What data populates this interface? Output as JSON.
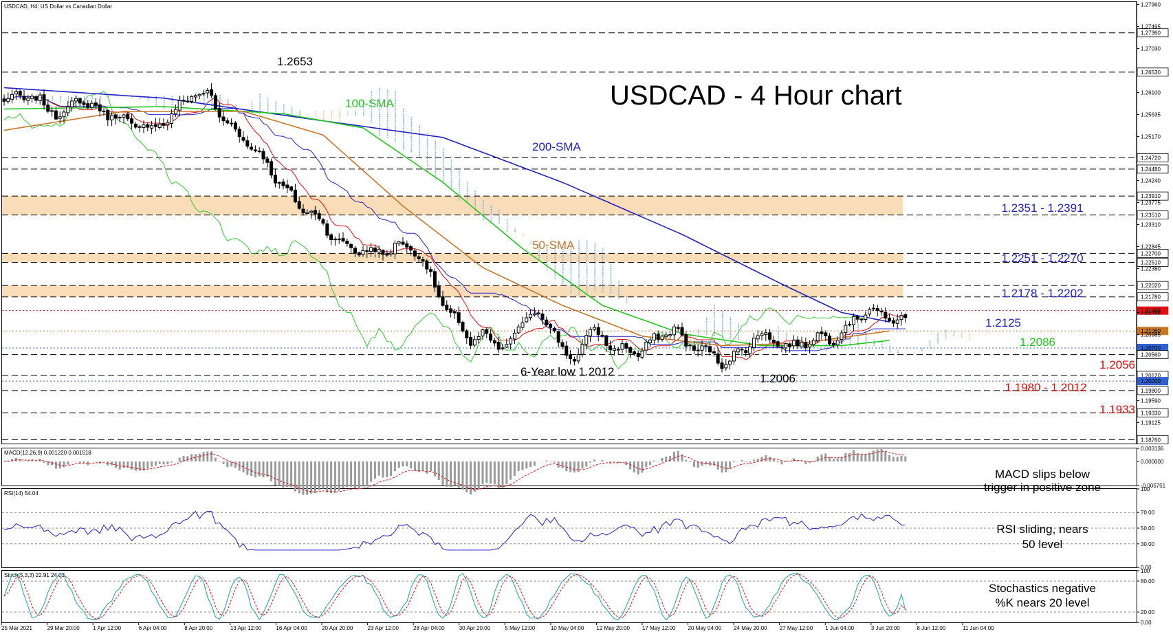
{
  "header": {
    "main": "USDCAD, H4:  US Dollar vs Canadian Dollar",
    "macd": "MACD(12,26,9) 0.001220 0.001518",
    "rsi": "RSI(14) 54.04",
    "stoch": "Stoch(5,3,3) 22.91 24.03"
  },
  "title": "USDCAD - 4 Hour chart",
  "colors": {
    "background": "#ffffff",
    "candle": "#000000",
    "sma200": "#1e22c8",
    "sma100": "#22c81e",
    "sma50": "#c87828",
    "tenkan": "#e01010",
    "kijun": "#2020d0",
    "chikou": "#33cc33",
    "cloud_bull": "#f4c08c",
    "cloud_bear": "#7aaee8",
    "zone_fill": "#f9ddb8",
    "blue_text": "#1e22c8",
    "red_text": "#e01010",
    "green_text": "#22c81e",
    "orange_text": "#c87828",
    "macd_hist": "#9a9a9a",
    "macd_signal": "#e01010",
    "rsi_line": "#2020c8",
    "stoch_main": "#1aa0b0",
    "stoch_signal": "#e01010"
  },
  "chart_data": [
    {
      "type": "candlestick",
      "instrument": "USDCAD",
      "timeframe": "H4",
      "x_labels": [
        "25 Mar 2021",
        "29 Mar 20:00",
        "1 Apr 12:00",
        "6 Apr 04:00",
        "8 Apr 20:00",
        "13 Apr 12:00",
        "16 Apr 04:00",
        "20 Apr 20:00",
        "23 Apr 12:00",
        "28 Apr 04:00",
        "30 Apr 20:00",
        "5 May 12:00",
        "10 May 04:00",
        "12 May 20:00",
        "17 May 12:00",
        "20 May 04:00",
        "24 May 20:00",
        "27 May 12:00",
        "1 Jun 04:00",
        "3 Jun 20:00",
        "8 Jun 12:00",
        "11 Jun 04:00"
      ],
      "y_ticks": [
        "1.27960",
        "1.27495",
        "1.27360",
        "1.27030",
        "1.26530",
        "1.26100",
        "1.25635",
        "1.25170",
        "1.24720",
        "1.24480",
        "1.24240",
        "1.23910",
        "1.23775",
        "1.23510",
        "1.23310",
        "1.22845",
        "1.22700",
        "1.22510",
        "1.22380",
        "1.22020",
        "1.21780",
        "1.21490",
        "1.21450",
        "1.21060",
        "1.20985",
        "1.20700",
        "1.20560",
        "1.20120",
        "1.20000",
        "1.19800",
        "1.19590",
        "1.19330",
        "1.19125",
        "1.18760"
      ],
      "ylim": [
        1.1868,
        1.2801
      ],
      "close_path": [
        [
          0,
          1.259
        ],
        [
          4,
          1.2605
        ],
        [
          9,
          1.259
        ],
        [
          14,
          1.256
        ],
        [
          18,
          1.2595
        ],
        [
          23,
          1.2575
        ],
        [
          28,
          1.256
        ],
        [
          33,
          1.254
        ],
        [
          37,
          1.2535
        ],
        [
          42,
          1.256
        ],
        [
          47,
          1.261
        ],
        [
          52,
          1.26
        ],
        [
          54,
          1.2563
        ],
        [
          59,
          1.252
        ],
        [
          64,
          1.248
        ],
        [
          69,
          1.242
        ],
        [
          74,
          1.237
        ],
        [
          78,
          1.235
        ],
        [
          83,
          1.23
        ],
        [
          87,
          1.228
        ],
        [
          91,
          1.2275
        ],
        [
          95,
          1.227
        ],
        [
          99,
          1.229
        ],
        [
          104,
          1.227
        ],
        [
          108,
          1.22
        ],
        [
          111,
          1.215
        ],
        [
          114,
          1.212
        ],
        [
          117,
          1.2085
        ],
        [
          120,
          1.2095
        ],
        [
          123,
          1.208
        ],
        [
          126,
          1.207
        ],
        [
          129,
          1.211
        ],
        [
          132,
          1.215
        ],
        [
          135,
          1.213
        ],
        [
          138,
          1.211
        ],
        [
          141,
          1.205
        ],
        [
          143,
          1.204
        ],
        [
          145,
          1.208
        ],
        [
          147,
          1.211
        ],
        [
          150,
          1.209
        ],
        [
          153,
          1.207
        ],
        [
          156,
          1.2065
        ],
        [
          159,
          1.206
        ],
        [
          162,
          1.208
        ],
        [
          165,
          1.21
        ],
        [
          168,
          1.211
        ],
        [
          171,
          1.208
        ],
        [
          174,
          1.207
        ],
        [
          177,
          1.206
        ],
        [
          180,
          1.204
        ],
        [
          182,
          1.2045
        ],
        [
          185,
          1.2065
        ],
        [
          188,
          1.209
        ],
        [
          191,
          1.21
        ],
        [
          194,
          1.208
        ],
        [
          197,
          1.207
        ],
        [
          199,
          1.208
        ],
        [
          202,
          1.2085
        ],
        [
          205,
          1.2095
        ],
        [
          208,
          1.209
        ],
        [
          211,
          1.211
        ],
        [
          214,
          1.214
        ],
        [
          217,
          1.215
        ],
        [
          220,
          1.214
        ],
        [
          223,
          1.213
        ],
        [
          226,
          1.2125
        ]
      ],
      "series": [
        {
          "name": "200-SMA",
          "values": [
            [
              0,
              1.262
            ],
            [
              40,
              1.2598
            ],
            [
              80,
              1.255
            ],
            [
              110,
              1.2515
            ],
            [
              140,
              1.242
            ],
            [
              170,
              1.231
            ],
            [
              195,
              1.2205
            ],
            [
              210,
              1.2145
            ],
            [
              222,
              1.2125
            ]
          ]
        },
        {
          "name": "100-SMA",
          "values": [
            [
              0,
              1.2575
            ],
            [
              40,
              1.258
            ],
            [
              70,
              1.2565
            ],
            [
              90,
              1.2535
            ],
            [
              110,
              1.242
            ],
            [
              130,
              1.228
            ],
            [
              150,
              1.216
            ],
            [
              170,
              1.21
            ],
            [
              190,
              1.2075
            ],
            [
              210,
              1.2075
            ],
            [
              222,
              1.2086
            ]
          ]
        },
        {
          "name": "50-SMA",
          "values": [
            [
              0,
              1.253
            ],
            [
              30,
              1.257
            ],
            [
              60,
              1.257
            ],
            [
              80,
              1.252
            ],
            [
              100,
              1.237
            ],
            [
              120,
              1.224
            ],
            [
              140,
              1.216
            ],
            [
              160,
              1.2095
            ],
            [
              180,
              1.2075
            ],
            [
              200,
              1.208
            ],
            [
              222,
              1.2106
            ]
          ]
        }
      ],
      "key_levels": [
        {
          "label": "1.2653",
          "value": 1.2653
        },
        {
          "label": "6-Year low 1.2012",
          "value": 1.2012
        },
        {
          "label": "1.2006",
          "value": 1.2006
        }
      ],
      "zones": [
        {
          "label": "1.2351 - 1.2391",
          "from": 1.2351,
          "to": 1.2391
        },
        {
          "label": "1.2251 - 1.2270",
          "from": 1.2251,
          "to": 1.227
        },
        {
          "label": "1.2178 - 1.2202",
          "from": 1.2178,
          "to": 1.2202
        }
      ],
      "level_labels": [
        {
          "label": "1.2125",
          "value": 1.2125
        },
        {
          "label": "1.2086",
          "value": 1.2086
        },
        {
          "label": "1.2056",
          "value": 1.2056
        },
        {
          "label": "1.1980 - 1.2012",
          "value": 1.1996
        },
        {
          "label": "1.1933",
          "value": 1.1933
        }
      ],
      "current_price": "1.21490",
      "sma_labels": {
        "sma100": "100-SMA",
        "sma200": "200-SMA",
        "sma50": "50-SMA"
      }
    },
    {
      "type": "bar",
      "indicator": "MACD(12,26,9)",
      "y_ticks": [
        "0.003136",
        "0.000000",
        "-0.005751"
      ],
      "main": 0.00122,
      "signal": 0.001518,
      "note_lines": [
        "MACD slips below",
        "trigger in positive zone"
      ]
    },
    {
      "type": "line",
      "indicator": "RSI(14)",
      "y_ticks": [
        "100",
        "70.00",
        "50.00",
        "30.00",
        "0.00"
      ],
      "last": 54.04,
      "note_lines": [
        "RSI sliding, nears",
        "50 level"
      ]
    },
    {
      "type": "line",
      "indicator": "Stoch(5,3,3)",
      "y_ticks": [
        "100",
        "80.00",
        "20.00",
        "0.00"
      ],
      "main": 22.91,
      "signal": 24.03,
      "note_lines": [
        "Stochastics negative",
        "%K nears 20 level"
      ]
    }
  ]
}
